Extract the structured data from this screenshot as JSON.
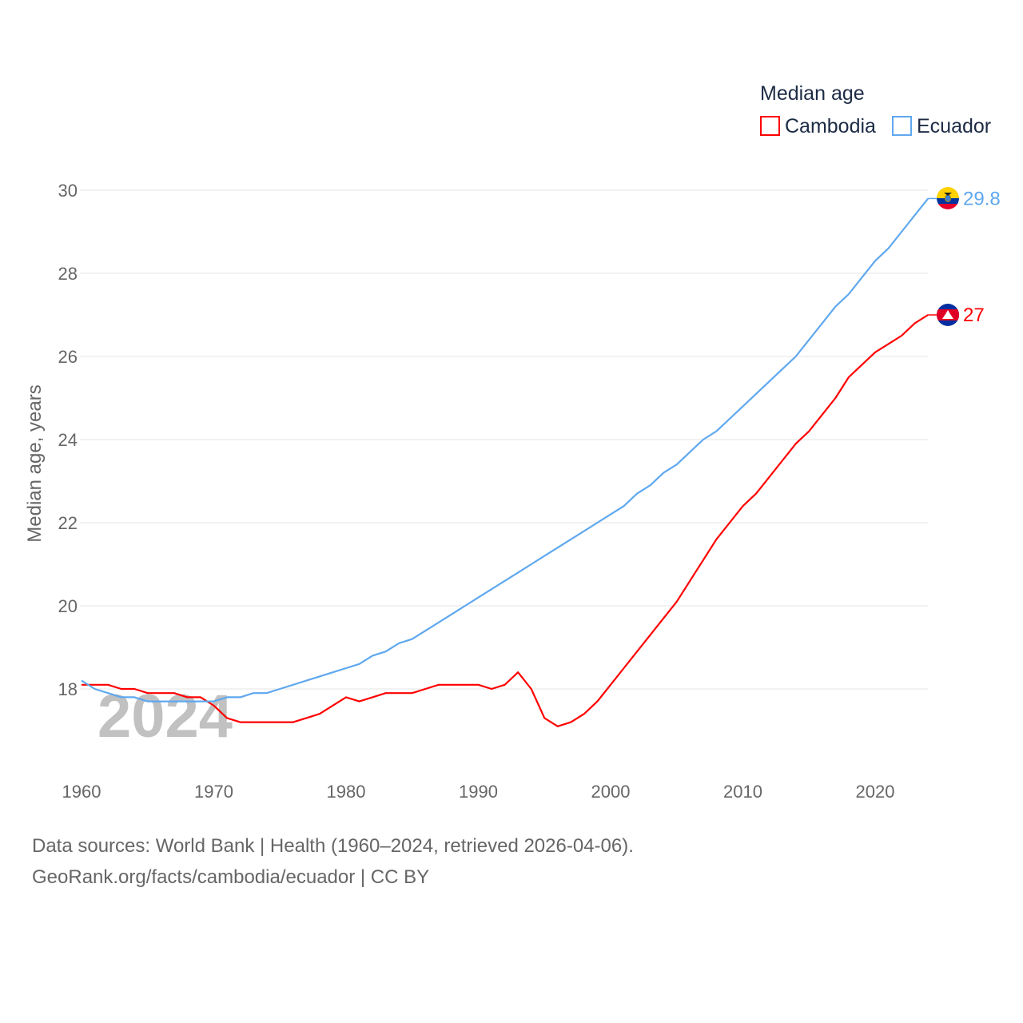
{
  "chart_data": {
    "type": "line",
    "legend_title": "Median age",
    "ylabel": "Median age, years",
    "xlabel": "",
    "ylim": [
      16.2,
      30
    ],
    "xlim": [
      1960,
      2024
    ],
    "yticks": [
      18,
      20,
      22,
      24,
      26,
      28,
      30
    ],
    "xticks": [
      1960,
      1970,
      1980,
      1990,
      2000,
      2010,
      2020
    ],
    "grid": true,
    "legend_position": "top-right",
    "watermark_year": "2024",
    "x": [
      1960,
      1961,
      1962,
      1963,
      1964,
      1965,
      1966,
      1967,
      1968,
      1969,
      1970,
      1971,
      1972,
      1973,
      1974,
      1975,
      1976,
      1977,
      1978,
      1979,
      1980,
      1981,
      1982,
      1983,
      1984,
      1985,
      1986,
      1987,
      1988,
      1989,
      1990,
      1991,
      1992,
      1993,
      1994,
      1995,
      1996,
      1997,
      1998,
      1999,
      2000,
      2001,
      2002,
      2003,
      2004,
      2005,
      2006,
      2007,
      2008,
      2009,
      2010,
      2011,
      2012,
      2013,
      2014,
      2015,
      2016,
      2017,
      2018,
      2019,
      2020,
      2021,
      2022,
      2023,
      2024
    ],
    "series": [
      {
        "name": "Cambodia",
        "color": "#ff0000",
        "end_label": "27",
        "values": [
          18.1,
          18.1,
          18.1,
          18.0,
          18.0,
          17.9,
          17.9,
          17.9,
          17.8,
          17.8,
          17.6,
          17.3,
          17.2,
          17.2,
          17.2,
          17.2,
          17.2,
          17.3,
          17.4,
          17.6,
          17.8,
          17.7,
          17.8,
          17.9,
          17.9,
          17.9,
          18.0,
          18.1,
          18.1,
          18.1,
          18.1,
          18.0,
          18.1,
          18.4,
          18.0,
          17.3,
          17.1,
          17.2,
          17.4,
          17.7,
          18.1,
          18.5,
          18.9,
          19.3,
          19.7,
          20.1,
          20.6,
          21.1,
          21.6,
          22.0,
          22.4,
          22.7,
          23.1,
          23.5,
          23.9,
          24.2,
          24.6,
          25.0,
          25.5,
          25.8,
          26.1,
          26.3,
          26.5,
          26.8,
          27.0
        ]
      },
      {
        "name": "Ecuador",
        "color": "#5fa8ef",
        "end_label": "29.8",
        "values": [
          18.2,
          18.0,
          17.9,
          17.8,
          17.8,
          17.7,
          17.7,
          17.7,
          17.7,
          17.7,
          17.7,
          17.8,
          17.8,
          17.9,
          17.9,
          18.0,
          18.1,
          18.2,
          18.3,
          18.4,
          18.5,
          18.6,
          18.8,
          18.9,
          19.1,
          19.2,
          19.4,
          19.6,
          19.8,
          20.0,
          20.2,
          20.4,
          20.6,
          20.8,
          21.0,
          21.2,
          21.4,
          21.6,
          21.8,
          22.0,
          22.2,
          22.4,
          22.7,
          22.9,
          23.2,
          23.4,
          23.7,
          24.0,
          24.2,
          24.5,
          24.8,
          25.1,
          25.4,
          25.7,
          26.0,
          26.4,
          26.8,
          27.2,
          27.5,
          27.9,
          28.3,
          28.6,
          29.0,
          29.4,
          29.8
        ]
      }
    ]
  },
  "footer": {
    "line1": "Data sources: World Bank | Health (1960–2024, retrieved 2026-04-06).",
    "line2": "GeoRank.org/facts/cambodia/ecuador | CC BY"
  }
}
